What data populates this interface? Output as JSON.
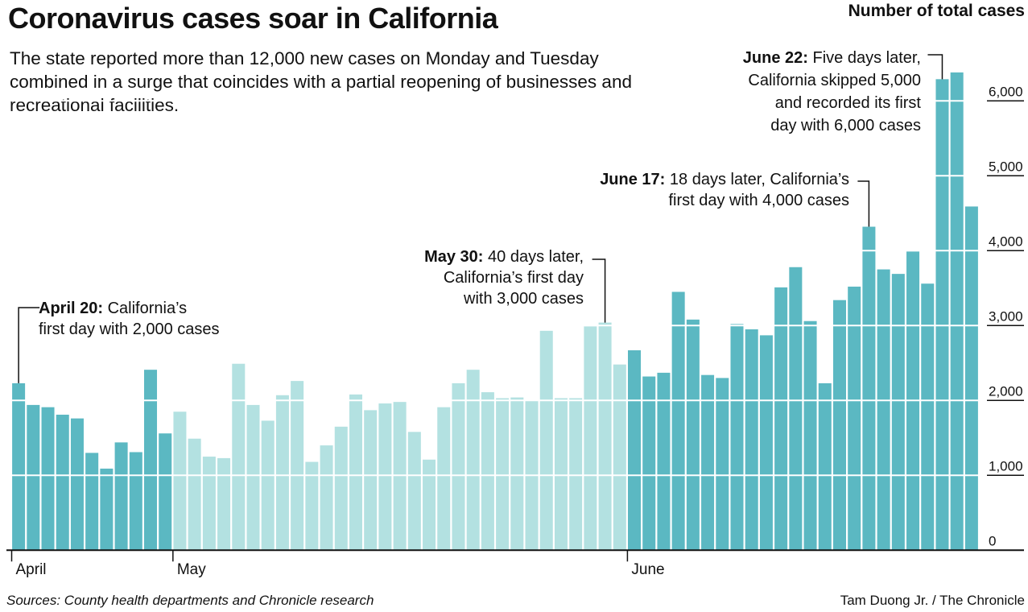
{
  "title": "Coronavirus cases soar in California",
  "subtitle": "The state reported more than 12,000 new cases on Monday and Tuesday combined in a surge that coincides with a partial reopening of businesses and recreational facilities.",
  "source": "Sources: County health departments and Chronicle research",
  "credit": "Tam Duong Jr. / The Chronicle",
  "colors": {
    "dark": "#5bb8c2",
    "light": "#b3e1e1",
    "axis": "#111111"
  },
  "annotations": [
    {
      "bold": "April 20:",
      "lines": [
        "California’s",
        "first day with 2,000 cases"
      ],
      "day_index": 0
    },
    {
      "bold": "May 30:",
      "lines": [
        "40 days later,",
        "California’s first day",
        "with 3,000 cases"
      ],
      "day_index": 40
    },
    {
      "bold": "June 17:",
      "lines": [
        "18 days later, California’s",
        "first day with 4,000 cases"
      ],
      "day_index": 58
    },
    {
      "bold": "June 22:",
      "lines": [
        "Five days later,",
        "California skipped 5,000",
        "and recorded its first",
        "day with 6,000 cases"
      ],
      "day_index": 63
    }
  ],
  "chart_data": {
    "type": "bar",
    "title": "Coronavirus cases soar in California",
    "ylabel": "Number of total cases",
    "ylim": [
      0,
      6500
    ],
    "yticks": [
      "0",
      "1,000",
      "2,000",
      "3,000",
      "4,000",
      "5,000",
      "6,000"
    ],
    "ytick_values": [
      0,
      1000,
      2000,
      3000,
      4000,
      5000,
      6000
    ],
    "grid": true,
    "x_start": "April 20",
    "month_labels": [
      {
        "label": "April",
        "day_index": 0
      },
      {
        "label": "May",
        "day_index": 11
      },
      {
        "label": "June",
        "day_index": 42
      }
    ],
    "series": [
      {
        "values": [
          2230,
          1940,
          1910,
          1810,
          1760,
          1300,
          1090,
          1440,
          1310,
          2410,
          1560,
          1850,
          1490,
          1250,
          1230,
          2490,
          1940,
          1730,
          2070,
          2260,
          1180,
          1400,
          1650,
          2080,
          1870,
          1960,
          1980,
          1580,
          1210,
          1910,
          2230,
          2410,
          2110,
          2030,
          2040,
          2000,
          2930,
          2030,
          2030,
          2990,
          3040,
          2480,
          2670,
          2320,
          2370,
          3450,
          3080,
          2340,
          2300,
          3020,
          2950,
          2870,
          3510,
          3780,
          3060,
          2230,
          3340,
          3520,
          4320,
          3750,
          3690,
          3990,
          3560,
          6290,
          6380,
          4590
        ],
        "shade": [
          "dark",
          "dark",
          "dark",
          "dark",
          "dark",
          "dark",
          "dark",
          "dark",
          "dark",
          "dark",
          "dark",
          "light",
          "light",
          "light",
          "light",
          "light",
          "light",
          "light",
          "light",
          "light",
          "light",
          "light",
          "light",
          "light",
          "light",
          "light",
          "light",
          "light",
          "light",
          "light",
          "light",
          "light",
          "light",
          "light",
          "light",
          "light",
          "light",
          "light",
          "light",
          "light",
          "light",
          "light",
          "dark",
          "dark",
          "dark",
          "dark",
          "dark",
          "dark",
          "dark",
          "dark",
          "dark",
          "dark",
          "dark",
          "dark",
          "dark",
          "dark",
          "dark",
          "dark",
          "dark",
          "dark",
          "dark",
          "dark",
          "dark",
          "dark",
          "dark",
          "dark"
        ]
      }
    ]
  }
}
